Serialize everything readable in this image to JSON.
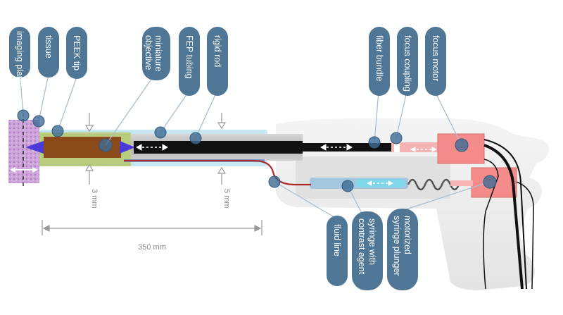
{
  "labels": {
    "imaging_plane": "imaging plane",
    "tissue": "tissue",
    "peek_tip": "PEEK tip",
    "miniature_objective_1": "miniature",
    "miniature_objective_2": "objective",
    "fep_tubing": "FEP tubing",
    "rigid_rod": "rigid rod",
    "fiber_bundle": "fiber bundle",
    "focus_coupling": "focus coupling",
    "focus_motor": "focus motor",
    "fluid_line": "fluid line",
    "syringe_contrast_1": "syringe with",
    "syringe_contrast_2": "contrast agent",
    "motorized_syringe_1": "motorized",
    "motorized_syringe_2": "syringe plunger"
  },
  "dimensions": {
    "tip_diameter": "3 mm",
    "rod_diameter": "5 mm",
    "length": "350 mm"
  },
  "colors": {
    "callout_pill": "#4f7695",
    "callout_dot": "#3e6b95",
    "leader_line": "#a9bdd0",
    "tissue": "#c89fd4",
    "peek_tip": "#8a4a1a",
    "green_sleeve": "#b7c97a",
    "fep_tubing": "#bde3ef",
    "rigid_rod": "#b7b7b7",
    "fiber_core": "#111111",
    "motor": "#f08a8a",
    "fluid_line": "#b02a2a",
    "handle_body": "#e7e7e7",
    "arrow_blue": "#4b3ad8"
  }
}
